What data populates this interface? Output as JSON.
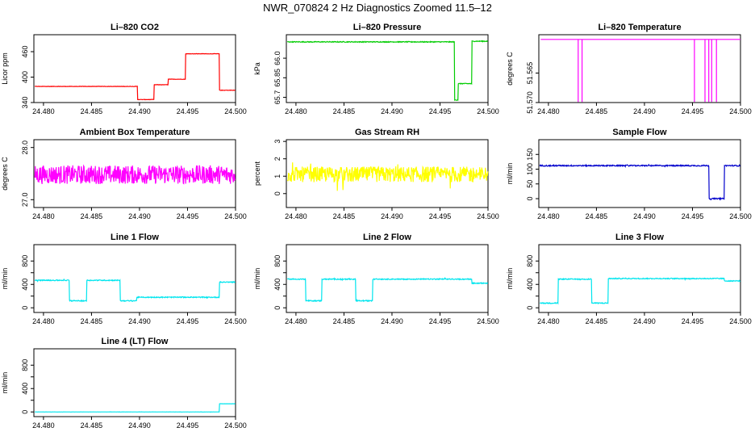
{
  "title": "NWR_070824  2 Hz Diagnostics Zoomed 11.5–12",
  "chart_data": [
    {
      "type": "line",
      "title": "Li–820 CO2",
      "ylabel": "Licor ppm",
      "color": "#ff0000",
      "xlim": [
        24.479,
        24.5
      ],
      "xticks": [
        24.48,
        24.485,
        24.49,
        24.495,
        24.5
      ],
      "xtick_labels": [
        "24.480",
        "24.485",
        "24.490",
        "24.495",
        "24.500"
      ],
      "ylim": [
        340,
        500
      ],
      "yticks": [
        340,
        400,
        460
      ],
      "ytick_labels": [
        "340",
        "400",
        "460"
      ],
      "noise": 0.4,
      "series": [
        {
          "name": "CO2",
          "steps": [
            [
              24.479,
              378
            ],
            [
              24.4898,
              347
            ],
            [
              24.4915,
              382
            ],
            [
              24.493,
              395
            ],
            [
              24.4948,
              455
            ],
            [
              24.4983,
              369
            ]
          ],
          "end": 24.5
        }
      ]
    },
    {
      "type": "line",
      "title": "Li–820 Pressure",
      "ylabel": "kPa",
      "color": "#00cc00",
      "xlim": [
        24.479,
        24.5
      ],
      "xticks": [
        24.48,
        24.485,
        24.49,
        24.495,
        24.5
      ],
      "xtick_labels": [
        "24.480",
        "24.485",
        "24.490",
        "24.495",
        "24.500"
      ],
      "ylim": [
        65.66,
        66.18
      ],
      "yticks": [
        65.7,
        65.85,
        66.0
      ],
      "ytick_labels": [
        "65.7",
        "65.85",
        "66.0"
      ],
      "noise": 0.003,
      "series": [
        {
          "name": "Pressure",
          "steps": [
            [
              24.479,
              66.125
            ],
            [
              24.4965,
              65.68
            ],
            [
              24.4969,
              65.805
            ],
            [
              24.4983,
              66.13
            ]
          ],
          "end": 24.5
        }
      ]
    },
    {
      "type": "line",
      "title": "Li–820 Temperature",
      "ylabel": "degrees C",
      "color": "#ff00ff",
      "xlim": [
        24.479,
        24.5
      ],
      "xticks": [
        24.48,
        24.485,
        24.49,
        24.495,
        24.5
      ],
      "xtick_labels": [
        "24.480",
        "24.485",
        "24.490",
        "24.495",
        "24.500"
      ],
      "ylim": [
        51.57,
        51.5585
      ],
      "yticks": [
        51.565,
        51.57
      ],
      "ytick_labels": [
        "51.565",
        "51.570"
      ],
      "noise": 0,
      "series": [
        {
          "name": "Temperature",
          "baseline": 51.5593,
          "spikes": [
            24.4831,
            24.4835,
            24.4952,
            24.4963,
            24.4967,
            24.497,
            24.4975
          ],
          "spike_to": 51.5699
        }
      ]
    },
    {
      "type": "line",
      "title": "Ambient Box Temperature",
      "ylabel": "degrees C",
      "color": "#ff00ff",
      "xlim": [
        24.479,
        24.5
      ],
      "xticks": [
        24.48,
        24.485,
        24.49,
        24.495,
        24.5
      ],
      "xtick_labels": [
        "24.480",
        "24.485",
        "24.490",
        "24.495",
        "24.500"
      ],
      "ylim": [
        26.85,
        28.15
      ],
      "yticks": [
        27.0,
        28.0
      ],
      "ytick_labels": [
        "27.0",
        "28.0"
      ],
      "noise": 0.18,
      "series": [
        {
          "name": "Ambient Box Temperature",
          "steps": [
            [
              24.479,
              27.48
            ]
          ],
          "end": 24.5
        }
      ]
    },
    {
      "type": "line",
      "title": "Gas Stream RH",
      "ylabel": "percent",
      "color": "#ffff00",
      "xlim": [
        24.479,
        24.5
      ],
      "xticks": [
        24.48,
        24.485,
        24.49,
        24.495,
        24.5
      ],
      "xtick_labels": [
        "24.480",
        "24.485",
        "24.490",
        "24.495",
        "24.500"
      ],
      "ylim": [
        -0.8,
        3.1
      ],
      "yticks": [
        0,
        1,
        2,
        3
      ],
      "ytick_labels": [
        "0",
        "1",
        "2",
        "3"
      ],
      "noise": 0.45,
      "series": [
        {
          "name": "Gas Stream RH",
          "steps": [
            [
              24.479,
              1.1
            ]
          ],
          "end": 24.5
        }
      ]
    },
    {
      "type": "line",
      "title": "Sample Flow",
      "ylabel": "ml/min",
      "color": "#0000cc",
      "xlim": [
        24.479,
        24.5
      ],
      "xticks": [
        24.48,
        24.485,
        24.49,
        24.495,
        24.5
      ],
      "xtick_labels": [
        "24.480",
        "24.485",
        "24.490",
        "24.495",
        "24.500"
      ],
      "ylim": [
        -30,
        200
      ],
      "yticks": [
        0,
        50,
        100,
        150
      ],
      "ytick_labels": [
        "0",
        "50",
        "100",
        "150"
      ],
      "noise": 2,
      "series": [
        {
          "name": "Sample Flow",
          "steps": [
            [
              24.479,
              112
            ],
            [
              24.4967,
              0
            ],
            [
              24.4983,
              112
            ]
          ],
          "end": 24.5
        }
      ]
    },
    {
      "type": "line",
      "title": "Line 1 Flow",
      "ylabel": "ml/min",
      "color": "#00e5ee",
      "xlim": [
        24.479,
        24.5
      ],
      "xticks": [
        24.48,
        24.485,
        24.49,
        24.495,
        24.5
      ],
      "xtick_labels": [
        "24.480",
        "24.485",
        "24.490",
        "24.495",
        "24.500"
      ],
      "ylim": [
        -80,
        1080
      ],
      "yticks": [
        0,
        200,
        400,
        600,
        800
      ],
      "ytick_labels": [
        "0",
        "400",
        "800"
      ],
      "noise": 8,
      "series": [
        {
          "name": "Line 1 Flow",
          "steps": [
            [
              24.479,
              470
            ],
            [
              24.4827,
              120
            ],
            [
              24.4845,
              470
            ],
            [
              24.488,
              120
            ],
            [
              24.4897,
              180
            ],
            [
              24.4983,
              440
            ]
          ],
          "end": 24.5
        }
      ]
    },
    {
      "type": "line",
      "title": "Line 2 Flow",
      "ylabel": "ml/min",
      "color": "#00e5ee",
      "xlim": [
        24.479,
        24.5
      ],
      "xticks": [
        24.48,
        24.485,
        24.49,
        24.495,
        24.5
      ],
      "xtick_labels": [
        "24.480",
        "24.485",
        "24.490",
        "24.495",
        "24.500"
      ],
      "ylim": [
        -80,
        1080
      ],
      "yticks": [
        0,
        200,
        400,
        600,
        800
      ],
      "ytick_labels": [
        "0",
        "400",
        "800"
      ],
      "noise": 8,
      "series": [
        {
          "name": "Line 2 Flow",
          "steps": [
            [
              24.479,
              490
            ],
            [
              24.481,
              120
            ],
            [
              24.4827,
              490
            ],
            [
              24.4862,
              120
            ],
            [
              24.488,
              490
            ],
            [
              24.4983,
              420
            ]
          ],
          "end": 24.5
        }
      ]
    },
    {
      "type": "line",
      "title": "Line 3 Flow",
      "ylabel": "ml/min",
      "color": "#00e5ee",
      "xlim": [
        24.479,
        24.5
      ],
      "xticks": [
        24.48,
        24.485,
        24.49,
        24.495,
        24.5
      ],
      "xtick_labels": [
        "24.480",
        "24.485",
        "24.490",
        "24.495",
        "24.500"
      ],
      "ylim": [
        -80,
        1080
      ],
      "yticks": [
        0,
        200,
        400,
        600,
        800
      ],
      "ytick_labels": [
        "0",
        "400",
        "800"
      ],
      "noise": 8,
      "series": [
        {
          "name": "Line 3 Flow",
          "steps": [
            [
              24.479,
              80
            ],
            [
              24.481,
              490
            ],
            [
              24.4845,
              80
            ],
            [
              24.4862,
              500
            ],
            [
              24.4983,
              460
            ]
          ],
          "end": 24.5
        }
      ]
    },
    {
      "type": "line",
      "title": "Line 4 (LT) Flow",
      "ylabel": "ml/min",
      "color": "#00e5ee",
      "xlim": [
        24.479,
        24.5
      ],
      "xticks": [
        24.48,
        24.485,
        24.49,
        24.495,
        24.5
      ],
      "xtick_labels": [
        "24.480",
        "24.485",
        "24.490",
        "24.495",
        "24.500"
      ],
      "ylim": [
        -80,
        1080
      ],
      "yticks": [
        0,
        200,
        400,
        600,
        800
      ],
      "ytick_labels": [
        "0",
        "400",
        "800"
      ],
      "noise": 1,
      "series": [
        {
          "name": "Line 4 (LT) Flow",
          "steps": [
            [
              24.479,
              0
            ],
            [
              24.4983,
              140
            ]
          ],
          "end": 24.5
        }
      ]
    }
  ]
}
